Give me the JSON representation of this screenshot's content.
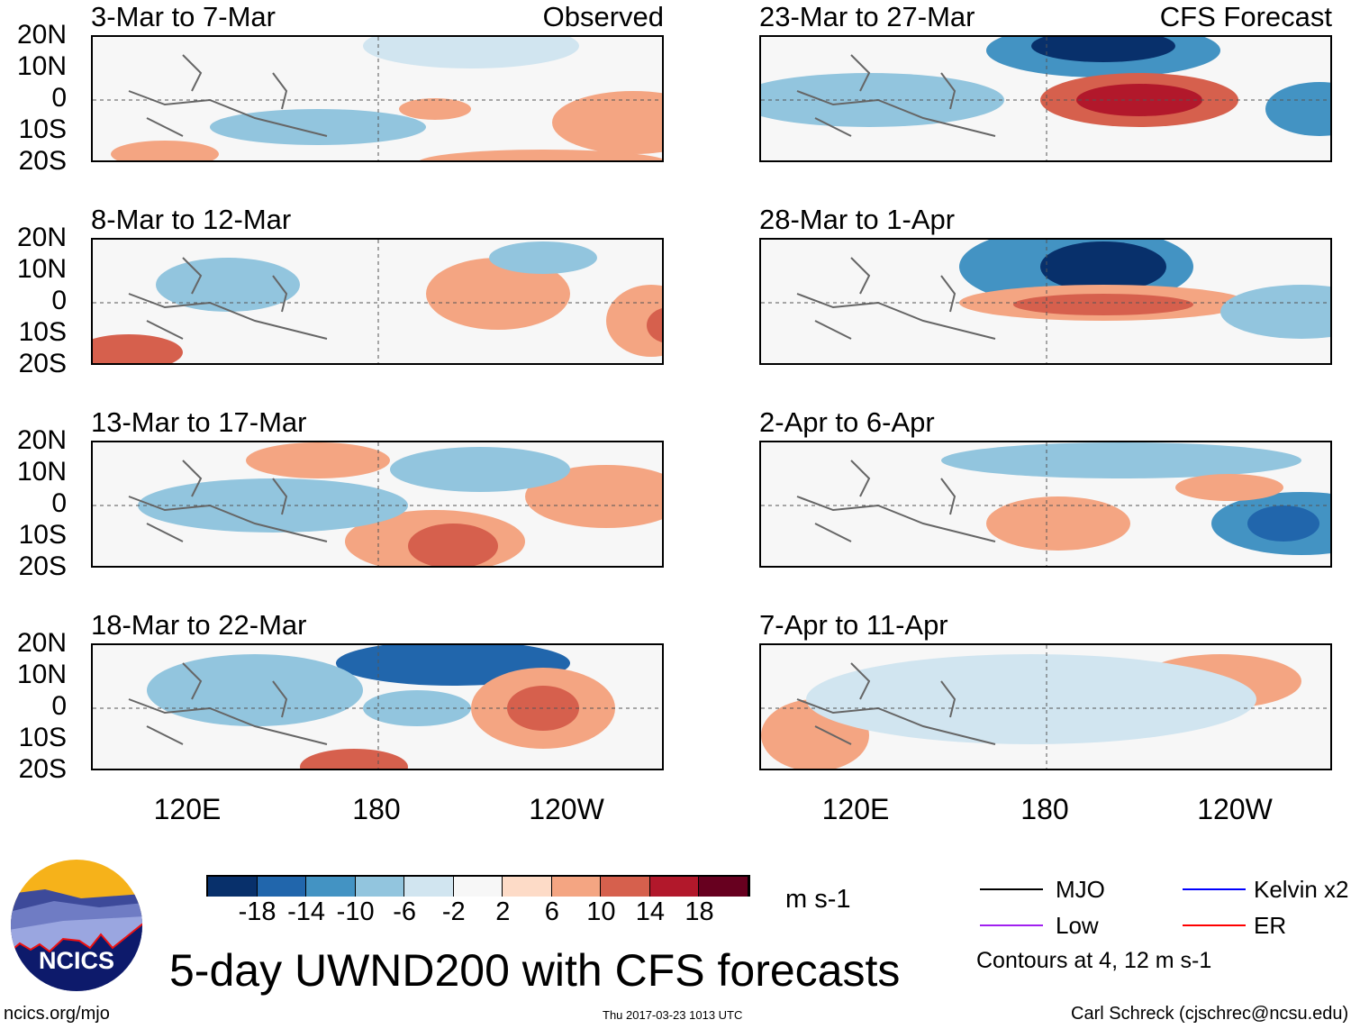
{
  "title": "5-day UWND200 with CFS forecasts",
  "left_header_label": "Observed",
  "right_header_label": "CFS Forecast",
  "lat_labels": [
    "20N",
    "10N",
    "0",
    "10S",
    "20S"
  ],
  "lon_labels": [
    "120E",
    "180",
    "120W"
  ],
  "colorbar": {
    "colors": [
      "#08306b",
      "#2166ac",
      "#4393c3",
      "#92c5de",
      "#d1e5f0",
      "#f7f7f7",
      "#fddbc7",
      "#f4a582",
      "#d6604d",
      "#b2182b",
      "#67001f"
    ],
    "ticks": [
      "-18",
      "-14",
      "-10",
      "-6",
      "-2",
      "2",
      "6",
      "10",
      "14",
      "18"
    ],
    "unit": "m s-1"
  },
  "legend": {
    "items": [
      {
        "label": "MJO",
        "color": "#000000"
      },
      {
        "label": "Kelvin x2",
        "color": "#0000ff"
      },
      {
        "label": "Low",
        "color": "#a020f0"
      },
      {
        "label": "ER",
        "color": "#ff0000"
      }
    ],
    "note": "Contours at 4, 12 m s-1"
  },
  "logo_text": "NCICS",
  "footer": {
    "url": "ncics.org/mjo",
    "timestamp": "Thu 2017-03-23 1013 UTC",
    "credit": "Carl Schreck (cjschrec@ncsu.edu)"
  },
  "chart_data": {
    "type": "heatmap",
    "variable": "200-hPa zonal wind anomaly (UWND200)",
    "unit": "m s-1",
    "lat_range": [
      "20S",
      "20N"
    ],
    "lon_ticks": [
      "120E",
      "180",
      "120W"
    ],
    "panels": [
      {
        "title": "3-Mar to 7-Mar",
        "kind": "Observed"
      },
      {
        "title": "8-Mar to 12-Mar",
        "kind": "Observed"
      },
      {
        "title": "13-Mar to 17-Mar",
        "kind": "Observed"
      },
      {
        "title": "18-Mar to 22-Mar",
        "kind": "Observed"
      },
      {
        "title": "23-Mar to 27-Mar",
        "kind": "CFS Forecast"
      },
      {
        "title": "28-Mar to 1-Apr",
        "kind": "CFS Forecast"
      },
      {
        "title": "2-Apr to 6-Apr",
        "kind": "CFS Forecast"
      },
      {
        "title": "7-Apr to 11-Apr",
        "kind": "CFS Forecast"
      }
    ]
  }
}
